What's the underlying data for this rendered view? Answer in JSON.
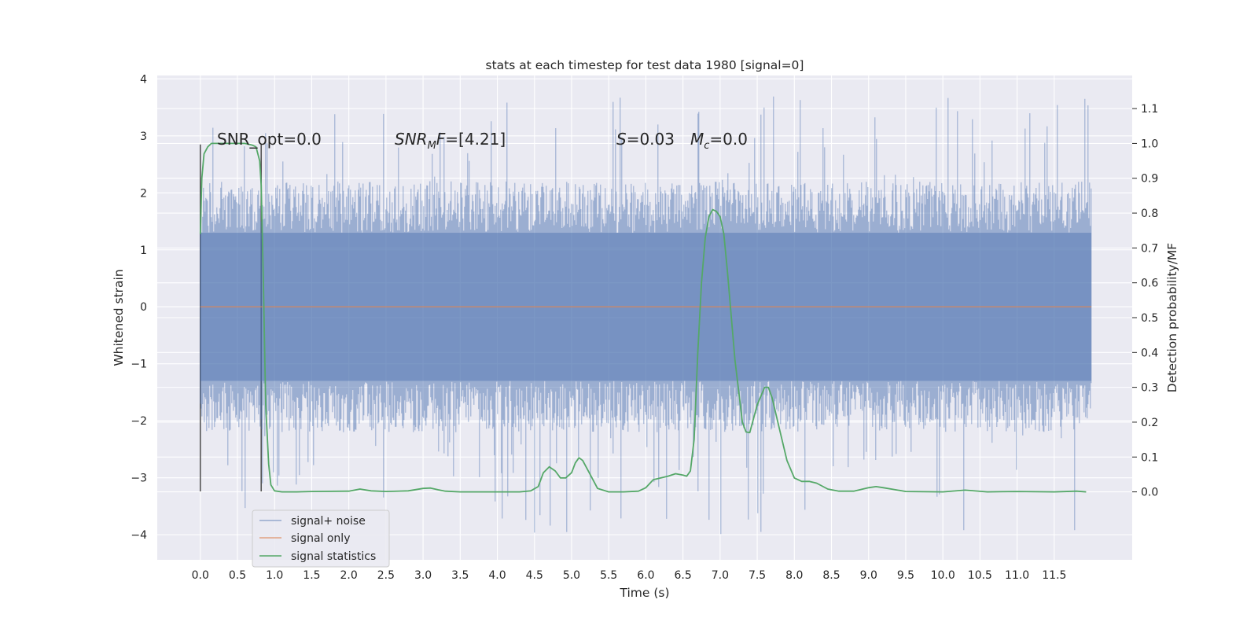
{
  "chart_data": {
    "type": "line",
    "title": "stats at each timestep for test data 1980 [signal=0]",
    "xlabel": "Time (s)",
    "ylabel_left": "Whitened strain",
    "ylabel_right": "Detection probability/MF",
    "xlim": [
      -0.58,
      12.55
    ],
    "ylim_left": [
      -4.44,
      4.06
    ],
    "ylim_right": [
      -0.195,
      1.195
    ],
    "grid": true,
    "legend_placement": "lower-left",
    "x_ticks": [
      "0.0",
      "0.5",
      "1.0",
      "1.5",
      "2.0",
      "2.5",
      "3.0",
      "3.5",
      "4.0",
      "4.5",
      "5.0",
      "5.5",
      "6.0",
      "6.5",
      "7.0",
      "7.5",
      "8.0",
      "8.5",
      "9.0",
      "9.5",
      "10.0",
      "10.5",
      "11.0",
      "11.5"
    ],
    "y_ticks_left": [
      "−4",
      "−3",
      "−2",
      "−1",
      "0",
      "1",
      "2",
      "3",
      "4"
    ],
    "y_ticks_right": [
      "0.0",
      "0.1",
      "0.2",
      "0.3",
      "0.4",
      "0.5",
      "0.6",
      "0.7",
      "0.8",
      "0.9",
      "1.0",
      "1.1"
    ],
    "annotations": {
      "snr_opt": "SNR_opt=0.0",
      "snr_mf_sym": "SNR",
      "snr_mf_sub": "M",
      "snr_mf_rest": "F=[4.21]",
      "s_sym": "S",
      "s_rest": "=0.03",
      "mc_sym": "M",
      "mc_sub": "c",
      "mc_rest": "=0.0"
    },
    "vertical_markers": [
      {
        "x": 0.0,
        "ymin": -3.24,
        "ymax": 2.85
      },
      {
        "x": 0.82,
        "ymin": -3.24,
        "ymax": 2.85
      }
    ],
    "series": [
      {
        "name": "signal+ noise",
        "kind": "noise",
        "x_range": [
          0.0,
          12.0
        ],
        "envelope_abs": 1.3,
        "spike_range": [
          -4.0,
          3.7
        ],
        "color": "#4c72b0",
        "alpha": 0.5
      },
      {
        "name": "signal only",
        "kind": "flat",
        "x_range": [
          0.0,
          12.0
        ],
        "value": 0.0,
        "color": "#dd8452"
      },
      {
        "name": "signal statistics",
        "kind": "line",
        "axis": "right",
        "color": "#55a868",
        "x": [
          0.0,
          0.02,
          0.05,
          0.1,
          0.15,
          0.2,
          0.3,
          0.4,
          0.5,
          0.6,
          0.7,
          0.75,
          0.8,
          0.82,
          0.85,
          0.88,
          0.92,
          0.95,
          1.0,
          1.1,
          1.3,
          1.5,
          2.0,
          2.15,
          2.3,
          2.5,
          2.8,
          3.0,
          3.1,
          3.2,
          3.3,
          3.5,
          4.0,
          4.3,
          4.45,
          4.55,
          4.62,
          4.7,
          4.78,
          4.85,
          4.92,
          5.0,
          5.05,
          5.1,
          5.15,
          5.25,
          5.35,
          5.5,
          5.7,
          5.9,
          6.0,
          6.1,
          6.3,
          6.4,
          6.5,
          6.55,
          6.6,
          6.65,
          6.7,
          6.75,
          6.8,
          6.85,
          6.9,
          6.95,
          7.0,
          7.05,
          7.1,
          7.2,
          7.3,
          7.35,
          7.4,
          7.5,
          7.6,
          7.65,
          7.7,
          7.8,
          7.9,
          8.0,
          8.1,
          8.2,
          8.3,
          8.45,
          8.6,
          8.8,
          9.0,
          9.1,
          9.2,
          9.5,
          10.0,
          10.3,
          10.6,
          11.0,
          11.5,
          11.8,
          11.93
        ],
        "y": [
          0.74,
          0.9,
          0.97,
          0.99,
          1.0,
          1.0,
          1.0,
          1.0,
          1.0,
          1.0,
          0.995,
          0.99,
          0.95,
          0.88,
          0.6,
          0.25,
          0.08,
          0.02,
          0.003,
          0.0,
          0.0,
          0.001,
          0.002,
          0.008,
          0.003,
          0.001,
          0.003,
          0.01,
          0.011,
          0.006,
          0.002,
          0.0,
          0.0,
          0.0,
          0.003,
          0.015,
          0.055,
          0.072,
          0.06,
          0.04,
          0.04,
          0.055,
          0.083,
          0.098,
          0.09,
          0.05,
          0.01,
          0.0,
          0.0,
          0.002,
          0.012,
          0.035,
          0.045,
          0.052,
          0.048,
          0.045,
          0.06,
          0.15,
          0.4,
          0.6,
          0.73,
          0.79,
          0.81,
          0.805,
          0.79,
          0.74,
          0.63,
          0.38,
          0.2,
          0.172,
          0.17,
          0.25,
          0.3,
          0.3,
          0.27,
          0.18,
          0.09,
          0.04,
          0.03,
          0.03,
          0.025,
          0.008,
          0.002,
          0.002,
          0.012,
          0.015,
          0.012,
          0.001,
          0.0,
          0.005,
          0.0,
          0.001,
          0.0,
          0.002,
          0.0
        ]
      }
    ]
  }
}
